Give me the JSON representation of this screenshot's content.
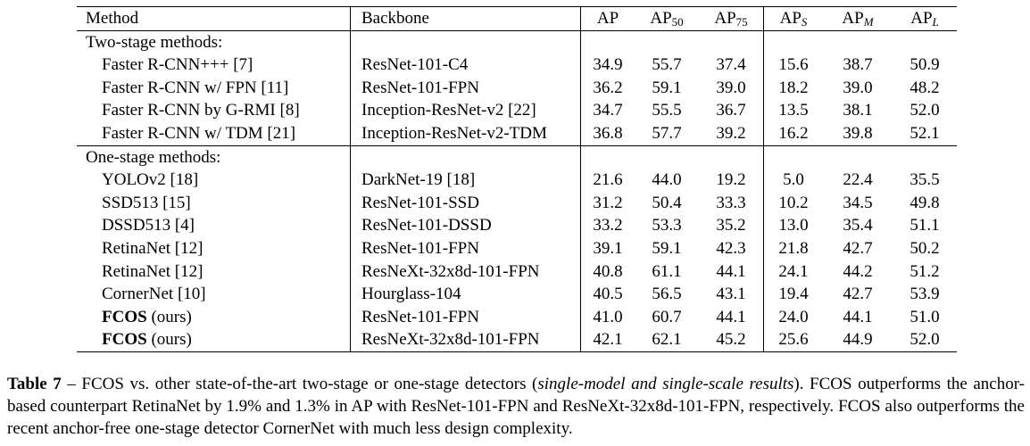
{
  "table": {
    "headers": {
      "method": "Method",
      "backbone": "Backbone",
      "ap": "AP",
      "ap50_main": "AP",
      "ap50_sub": "50",
      "ap75_main": "AP",
      "ap75_sub": "75",
      "aps_main": "AP",
      "aps_sub": "S",
      "apm_main": "AP",
      "apm_sub": "M",
      "apl_main": "AP",
      "apl_sub": "L"
    },
    "sections": [
      {
        "title": "Two-stage methods:",
        "rows": [
          {
            "method": "Faster R-CNN+++ [7]",
            "method_bold": "",
            "backbone": "ResNet-101-C4",
            "ap": "34.9",
            "ap50": "55.7",
            "ap75": "37.4",
            "aps": "15.6",
            "apm": "38.7",
            "apl": "50.9"
          },
          {
            "method": "Faster R-CNN w/ FPN [11]",
            "method_bold": "",
            "backbone": "ResNet-101-FPN",
            "ap": "36.2",
            "ap50": "59.1",
            "ap75": "39.0",
            "aps": "18.2",
            "apm": "39.0",
            "apl": "48.2"
          },
          {
            "method": "Faster R-CNN by G-RMI [8]",
            "method_bold": "",
            "backbone": "Inception-ResNet-v2 [22]",
            "ap": "34.7",
            "ap50": "55.5",
            "ap75": "36.7",
            "aps": "13.5",
            "apm": "38.1",
            "apl": "52.0"
          },
          {
            "method": "Faster R-CNN w/ TDM [21]",
            "method_bold": "",
            "backbone": "Inception-ResNet-v2-TDM",
            "ap": "36.8",
            "ap50": "57.7",
            "ap75": "39.2",
            "aps": "16.2",
            "apm": "39.8",
            "apl": "52.1"
          }
        ]
      },
      {
        "title": "One-stage methods:",
        "rows": [
          {
            "method": "YOLOv2 [18]",
            "method_bold": "",
            "backbone": "DarkNet-19 [18]",
            "ap": "21.6",
            "ap50": "44.0",
            "ap75": "19.2",
            "aps": "5.0",
            "apm": "22.4",
            "apl": "35.5"
          },
          {
            "method": "SSD513 [15]",
            "method_bold": "",
            "backbone": "ResNet-101-SSD",
            "ap": "31.2",
            "ap50": "50.4",
            "ap75": "33.3",
            "aps": "10.2",
            "apm": "34.5",
            "apl": "49.8"
          },
          {
            "method": "DSSD513 [4]",
            "method_bold": "",
            "backbone": "ResNet-101-DSSD",
            "ap": "33.2",
            "ap50": "53.3",
            "ap75": "35.2",
            "aps": "13.0",
            "apm": "35.4",
            "apl": "51.1"
          },
          {
            "method": "RetinaNet [12]",
            "method_bold": "",
            "backbone": "ResNet-101-FPN",
            "ap": "39.1",
            "ap50": "59.1",
            "ap75": "42.3",
            "aps": "21.8",
            "apm": "42.7",
            "apl": "50.2"
          },
          {
            "method": "RetinaNet [12]",
            "method_bold": "",
            "backbone": "ResNeXt-32x8d-101-FPN",
            "ap": "40.8",
            "ap50": "61.1",
            "ap75": "44.1",
            "aps": "24.1",
            "apm": "44.2",
            "apl": "51.2"
          },
          {
            "method": "CornerNet [10]",
            "method_bold": "",
            "backbone": "Hourglass-104",
            "ap": "40.5",
            "ap50": "56.5",
            "ap75": "43.1",
            "aps": "19.4",
            "apm": "42.7",
            "apl": "53.9",
            "bold": [
              "apl"
            ]
          },
          {
            "method": " (ours)",
            "method_bold": "FCOS",
            "backbone": "ResNet-101-FPN",
            "ap": "41.0",
            "ap50": "60.7",
            "ap75": "44.1",
            "aps": "24.0",
            "apm": "44.1",
            "apl": "51.0"
          },
          {
            "method": " (ours)",
            "method_bold": "FCOS",
            "backbone": "ResNeXt-32x8d-101-FPN",
            "ap": "42.1",
            "ap50": "62.1",
            "ap75": "45.2",
            "aps": "25.6",
            "apm": "44.9",
            "apl": "52.0",
            "bold": [
              "ap",
              "ap50",
              "ap75",
              "aps",
              "apm"
            ]
          }
        ]
      }
    ]
  },
  "caption": {
    "label": "Table 7",
    "text_1": " – FCOS vs. other state-of-the-art two-stage or one-stage detectors (",
    "italic": "single-model and single-scale results",
    "text_2": "). FCOS outperforms the anchor-based counterpart RetinaNet by 1.9% and 1.3% in AP with ResNet-101-FPN and ResNeXt-32x8d-101-FPN, respectively. FCOS also outperforms the recent anchor-free one-stage detector CornerNet with much less design complexity."
  }
}
